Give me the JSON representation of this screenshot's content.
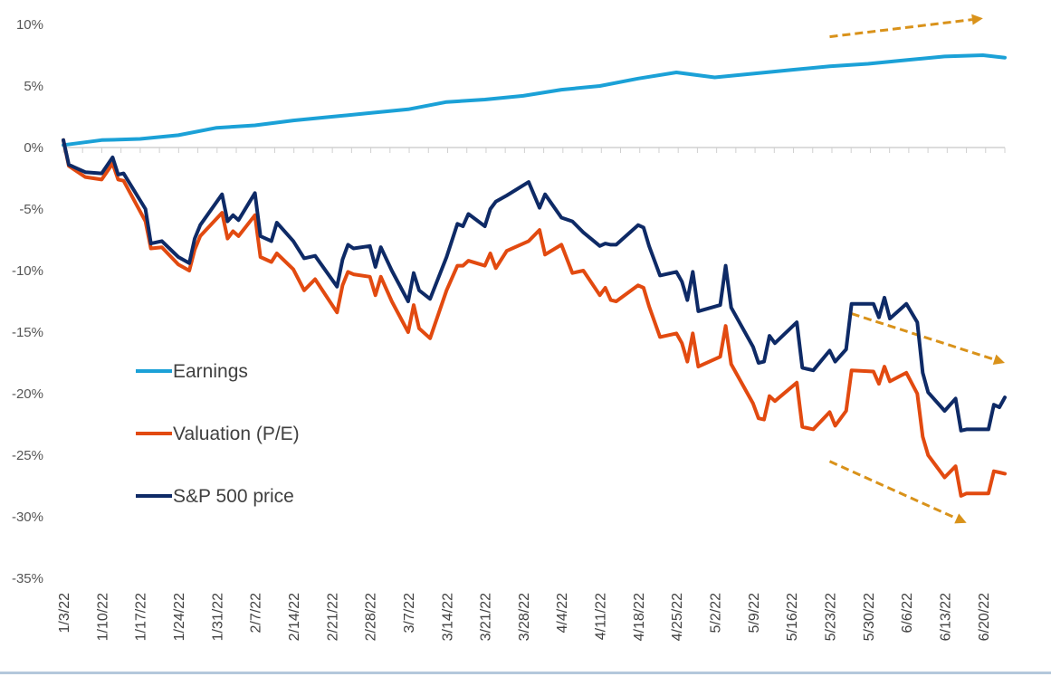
{
  "chart_data": {
    "type": "line",
    "title": "",
    "xlabel": "",
    "ylabel": "",
    "ylim": [
      -35,
      10
    ],
    "y_ticks": [
      "10%",
      "5%",
      "0%",
      "-5%",
      "-10%",
      "-15%",
      "-20%",
      "-25%",
      "-30%",
      "-35%"
    ],
    "x_tick_labels": [
      "1/3/22",
      "1/10/22",
      "1/17/22",
      "1/24/22",
      "1/31/22",
      "2/7/22",
      "2/14/22",
      "2/21/22",
      "2/28/22",
      "3/7/22",
      "3/14/22",
      "3/21/22",
      "3/28/22",
      "4/4/22",
      "4/11/22",
      "4/18/22",
      "4/25/22",
      "5/2/22",
      "5/9/22",
      "5/16/22",
      "5/23/22",
      "5/30/22",
      "6/6/22",
      "6/13/22",
      "6/20/22"
    ],
    "grid": false,
    "legend_position": "left",
    "series": [
      {
        "name": "Earnings",
        "color": "#1ba1d7",
        "x": [
          "1/3/22",
          "1/10/22",
          "1/17/22",
          "1/24/22",
          "1/31/22",
          "2/7/22",
          "2/14/22",
          "2/21/22",
          "2/28/22",
          "3/7/22",
          "3/14/22",
          "3/21/22",
          "3/28/22",
          "4/4/22",
          "4/11/22",
          "4/18/22",
          "4/25/22",
          "5/2/22",
          "5/9/22",
          "5/16/22",
          "5/23/22",
          "5/30/22",
          "6/6/22",
          "6/13/22",
          "6/20/22",
          "6/24/22"
        ],
        "values": [
          0.2,
          0.6,
          0.7,
          1.0,
          1.6,
          1.8,
          2.2,
          2.5,
          2.8,
          3.1,
          3.7,
          3.9,
          4.2,
          4.7,
          5.0,
          5.6,
          6.1,
          5.7,
          6.0,
          6.3,
          6.6,
          6.8,
          7.1,
          7.4,
          7.5,
          7.3
        ]
      },
      {
        "name": "Valuation (P/E)",
        "color": "#e24a10",
        "x": [
          "1/3/22",
          "1/4/22",
          "1/5/22",
          "1/7/22",
          "1/10/22",
          "1/12/22",
          "1/13/22",
          "1/14/22",
          "1/18/22",
          "1/19/22",
          "1/21/22",
          "1/24/22",
          "1/26/22",
          "1/27/22",
          "1/28/22",
          "2/1/22",
          "2/2/22",
          "2/3/22",
          "2/4/22",
          "2/7/22",
          "2/8/22",
          "2/10/22",
          "2/11/22",
          "2/14/22",
          "2/16/22",
          "2/18/22",
          "2/22/22",
          "2/23/22",
          "2/24/22",
          "2/25/22",
          "2/28/22",
          "3/1/22",
          "3/2/22",
          "3/4/22",
          "3/7/22",
          "3/8/22",
          "3/9/22",
          "3/11/22",
          "3/14/22",
          "3/16/22",
          "3/17/22",
          "3/18/22",
          "3/21/22",
          "3/22/22",
          "3/23/22",
          "3/25/22",
          "3/29/22",
          "3/31/22",
          "4/1/22",
          "4/4/22",
          "4/6/22",
          "4/8/22",
          "4/11/22",
          "4/12/22",
          "4/13/22",
          "4/14/22",
          "4/18/22",
          "4/19/22",
          "4/20/22",
          "4/22/22",
          "4/25/22",
          "4/26/22",
          "4/27/22",
          "4/28/22",
          "4/29/22",
          "5/3/22",
          "5/4/22",
          "5/5/22",
          "5/9/22",
          "5/10/22",
          "5/11/22",
          "5/12/22",
          "5/13/22",
          "5/17/22",
          "5/18/22",
          "5/20/22",
          "5/23/22",
          "5/24/22",
          "5/26/22",
          "5/27/22",
          "5/31/22",
          "6/1/22",
          "6/2/22",
          "6/3/22",
          "6/6/22",
          "6/8/22",
          "6/9/22",
          "6/10/22",
          "6/13/22",
          "6/15/22",
          "6/16/22",
          "6/17/22",
          "6/21/22",
          "6/22/22",
          "6/23/22",
          "6/24/22"
        ],
        "values": [
          0.6,
          -1.5,
          -1.8,
          -2.4,
          -2.6,
          -1.3,
          -2.6,
          -2.7,
          -6.0,
          -8.2,
          -8.1,
          -9.5,
          -10.0,
          -8.3,
          -7.2,
          -5.3,
          -7.4,
          -6.8,
          -7.2,
          -5.5,
          -8.9,
          -9.3,
          -8.6,
          -9.9,
          -11.6,
          -10.7,
          -13.4,
          -11.2,
          -10.1,
          -10.3,
          -10.5,
          -12.0,
          -10.5,
          -12.5,
          -15.0,
          -12.8,
          -14.7,
          -15.5,
          -11.6,
          -9.6,
          -9.6,
          -9.2,
          -9.6,
          -8.6,
          -9.8,
          -8.4,
          -7.6,
          -6.7,
          -8.7,
          -7.9,
          -10.2,
          -10.0,
          -12.0,
          -11.4,
          -12.4,
          -12.5,
          -11.2,
          -11.4,
          -12.9,
          -15.4,
          -15.1,
          -15.9,
          -17.4,
          -15.1,
          -17.8,
          -17.0,
          -14.5,
          -17.6,
          -20.8,
          -22.0,
          -22.1,
          -20.2,
          -20.6,
          -19.1,
          -22.7,
          -22.9,
          -21.5,
          -22.6,
          -21.4,
          -18.1,
          -18.2,
          -19.2,
          -17.8,
          -19.0,
          -18.3,
          -20.0,
          -23.5,
          -25.0,
          -26.8,
          -25.9,
          -28.3,
          -28.1,
          -28.1,
          -26.3,
          -26.4,
          -26.5
        ]
      },
      {
        "name": "S&P 500 price",
        "color": "#0e2a66",
        "x": [
          "1/3/22",
          "1/4/22",
          "1/5/22",
          "1/7/22",
          "1/10/22",
          "1/12/22",
          "1/13/22",
          "1/14/22",
          "1/18/22",
          "1/19/22",
          "1/21/22",
          "1/24/22",
          "1/26/22",
          "1/27/22",
          "1/28/22",
          "2/1/22",
          "2/2/22",
          "2/3/22",
          "2/4/22",
          "2/7/22",
          "2/8/22",
          "2/10/22",
          "2/11/22",
          "2/14/22",
          "2/16/22",
          "2/18/22",
          "2/22/22",
          "2/23/22",
          "2/24/22",
          "2/25/22",
          "2/28/22",
          "3/1/22",
          "3/2/22",
          "3/4/22",
          "3/7/22",
          "3/8/22",
          "3/9/22",
          "3/11/22",
          "3/14/22",
          "3/16/22",
          "3/17/22",
          "3/18/22",
          "3/21/22",
          "3/22/22",
          "3/23/22",
          "3/25/22",
          "3/29/22",
          "3/31/22",
          "4/1/22",
          "4/4/22",
          "4/6/22",
          "4/8/22",
          "4/11/22",
          "4/12/22",
          "4/13/22",
          "4/14/22",
          "4/18/22",
          "4/19/22",
          "4/20/22",
          "4/22/22",
          "4/25/22",
          "4/26/22",
          "4/27/22",
          "4/28/22",
          "4/29/22",
          "5/3/22",
          "5/4/22",
          "5/5/22",
          "5/9/22",
          "5/10/22",
          "5/11/22",
          "5/12/22",
          "5/13/22",
          "5/17/22",
          "5/18/22",
          "5/20/22",
          "5/23/22",
          "5/24/22",
          "5/26/22",
          "5/27/22",
          "5/31/22",
          "6/1/22",
          "6/2/22",
          "6/3/22",
          "6/6/22",
          "6/8/22",
          "6/9/22",
          "6/10/22",
          "6/13/22",
          "6/15/22",
          "6/16/22",
          "6/17/22",
          "6/21/22",
          "6/22/22",
          "6/23/22",
          "6/24/22"
        ],
        "values": [
          0.6,
          -1.4,
          -1.6,
          -2.0,
          -2.1,
          -0.8,
          -2.2,
          -2.1,
          -5.0,
          -7.8,
          -7.6,
          -8.9,
          -9.4,
          -7.4,
          -6.3,
          -3.8,
          -6.0,
          -5.5,
          -5.9,
          -3.7,
          -7.2,
          -7.6,
          -6.1,
          -7.6,
          -9.0,
          -8.8,
          -11.3,
          -9.1,
          -7.9,
          -8.2,
          -8.0,
          -9.7,
          -8.1,
          -10.0,
          -12.5,
          -10.2,
          -11.6,
          -12.3,
          -8.9,
          -6.2,
          -6.4,
          -5.4,
          -6.4,
          -5.0,
          -4.4,
          -3.9,
          -2.8,
          -4.9,
          -3.8,
          -5.7,
          -6.0,
          -6.9,
          -8.0,
          -7.8,
          -7.9,
          -7.9,
          -6.3,
          -6.5,
          -8.0,
          -10.4,
          -10.1,
          -10.9,
          -12.4,
          -10.1,
          -13.3,
          -12.8,
          -9.6,
          -13.0,
          -16.2,
          -17.5,
          -17.4,
          -15.3,
          -15.9,
          -14.2,
          -17.9,
          -18.1,
          -16.5,
          -17.4,
          -16.4,
          -12.7,
          -12.7,
          -13.8,
          -12.2,
          -13.9,
          -12.7,
          -14.2,
          -18.3,
          -19.9,
          -21.4,
          -20.4,
          -23.0,
          -22.9,
          -22.9,
          -20.9,
          -21.1,
          -20.3
        ]
      }
    ],
    "annotations": [
      {
        "type": "dashed-arrow",
        "color": "#d9921a",
        "direction": "up",
        "from": [
          "5/23/22",
          9.0
        ],
        "to": [
          "6/20/22",
          10.5
        ]
      },
      {
        "type": "dashed-arrow",
        "color": "#d9921a",
        "direction": "down",
        "from": [
          "5/27/22",
          -13.5
        ],
        "to": [
          "6/24/22",
          -17.5
        ]
      },
      {
        "type": "dashed-arrow",
        "color": "#d9921a",
        "direction": "down",
        "from": [
          "5/23/22",
          -25.5
        ],
        "to": [
          "6/17/22",
          -30.5
        ]
      }
    ]
  }
}
